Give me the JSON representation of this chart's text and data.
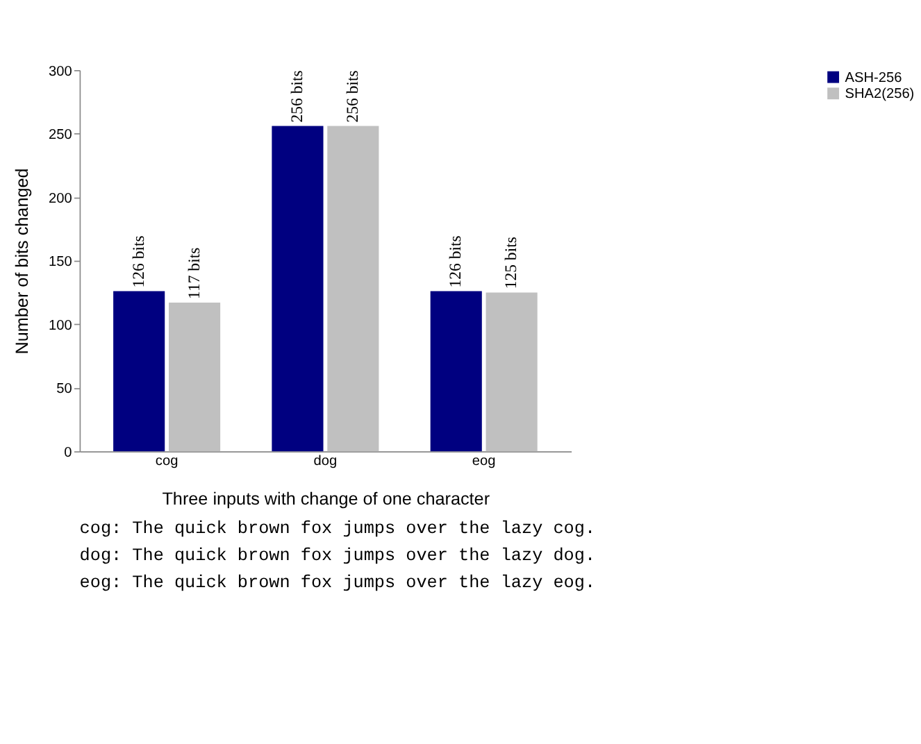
{
  "chart_data": {
    "type": "bar",
    "xlabel": "Three inputs with change of one character",
    "ylabel": "Number of bits changed",
    "categories": [
      "cog",
      "dog",
      "eog"
    ],
    "series": [
      {
        "name": "ASH-256",
        "color": "#000080",
        "values": [
          126,
          256,
          126
        ],
        "value_labels": [
          "126 bits",
          "256 bits",
          "126 bits"
        ]
      },
      {
        "name": "SHA2(256)",
        "color": "#c0c0c0",
        "values": [
          117,
          256,
          125
        ],
        "value_labels": [
          "117 bits",
          "256 bits",
          "125 bits"
        ]
      }
    ],
    "ylim": [
      0,
      300
    ],
    "yticks": [
      0,
      50,
      100,
      150,
      200,
      250,
      300
    ],
    "grid": false,
    "legend": "right",
    "annotations": [
      "cog: The quick brown fox jumps over the lazy cog.",
      "dog: The quick brown fox jumps over the lazy dog.",
      "eog: The quick brown fox jumps over the lazy eog."
    ]
  }
}
